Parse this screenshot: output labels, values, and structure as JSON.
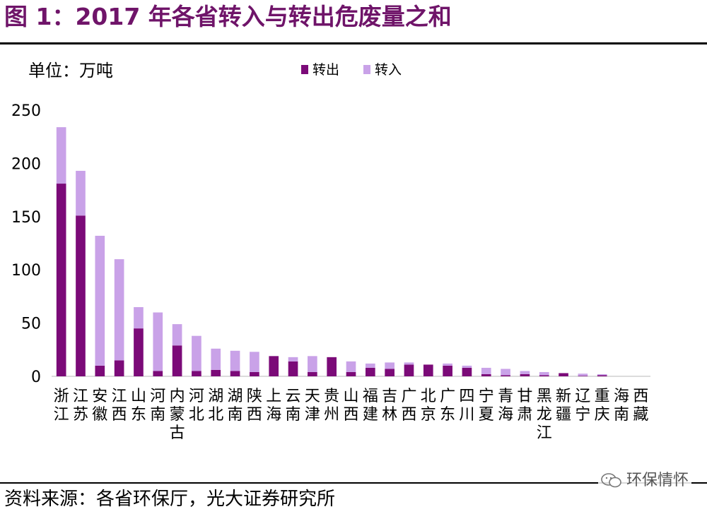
{
  "header": {
    "title": "图 1：2017 年各省转入与转出危废量之和"
  },
  "footer": {
    "source": "资料来源：各省环保厅，光大证券研究所",
    "watermark": "环保情怀",
    "watermark_icon": "wechat-icon"
  },
  "colors": {
    "title": "#6f1469",
    "out": "#7b0a78",
    "in": "#c9a2e8"
  },
  "chart_data": {
    "type": "bar",
    "stacked": true,
    "unit_label": "单位：万吨",
    "categories": [
      "浙江",
      "江苏",
      "安徽",
      "江西",
      "山东",
      "河南",
      "内蒙古",
      "河北",
      "湖北",
      "湖南",
      "陕西",
      "上海",
      "云南",
      "天津",
      "贵州",
      "山西",
      "福建",
      "吉林",
      "广西",
      "北京",
      "广东",
      "四川",
      "宁夏",
      "青海",
      "甘肃",
      "黑龙江",
      "新疆",
      "辽宁",
      "重庆",
      "海南",
      "西藏"
    ],
    "series": [
      {
        "name": "转出",
        "color": "#7b0a78",
        "values": [
          181,
          151,
          10,
          15,
          45,
          5,
          29,
          5,
          6,
          5,
          4,
          19,
          14,
          4,
          18,
          4,
          8,
          7,
          11,
          11,
          10,
          8,
          2,
          1,
          2,
          1,
          3,
          0.5,
          1,
          0,
          0
        ]
      },
      {
        "name": "转入",
        "color": "#c9a2e8",
        "values": [
          53,
          42,
          122,
          95,
          20,
          55,
          20,
          33,
          20,
          19,
          19,
          0,
          4,
          15,
          0,
          10,
          4,
          6,
          2,
          0,
          2,
          2,
          6,
          6,
          3,
          3,
          0,
          2,
          1,
          0,
          0
        ]
      }
    ],
    "ylim": [
      0,
      250
    ],
    "yticks": [
      0,
      50,
      100,
      150,
      200,
      250
    ],
    "legend_position": "top",
    "grid": false
  }
}
